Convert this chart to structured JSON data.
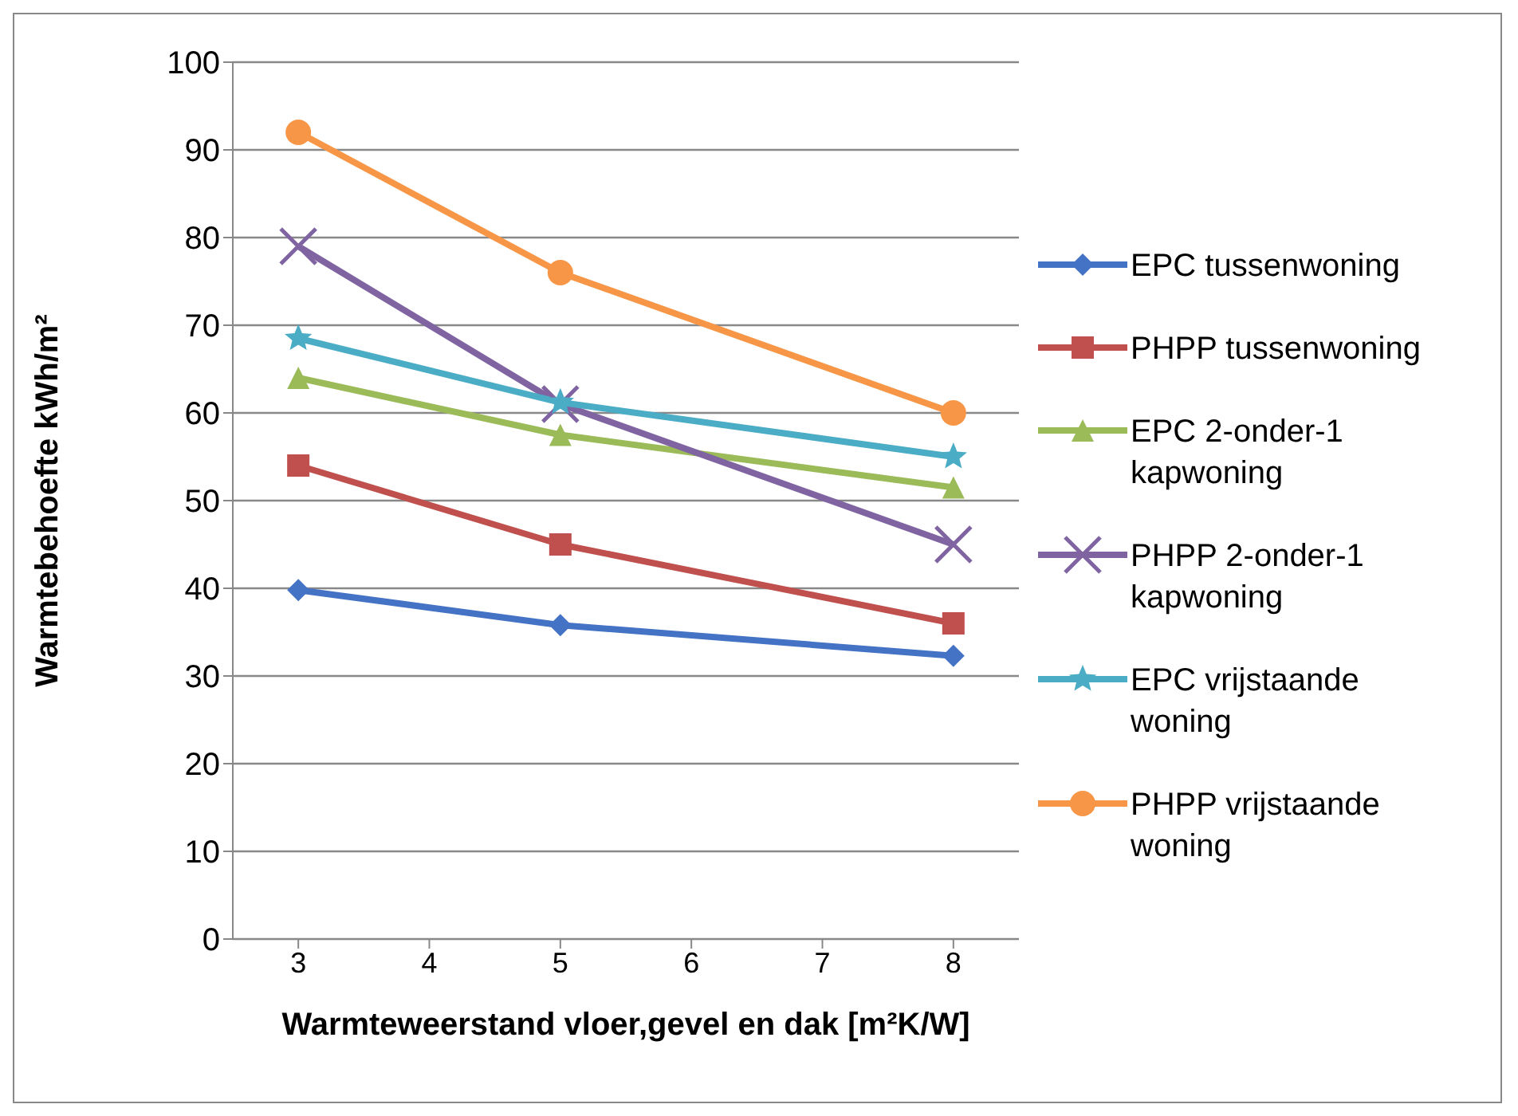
{
  "chart_data": {
    "type": "line",
    "xlabel": "Warmteweerstand vloer,gevel en dak [m²K/W]",
    "ylabel": "Warmtebehoefte kWh/m²",
    "x": [
      3,
      5,
      8
    ],
    "xlim": [
      2.5,
      8.5
    ],
    "xticks": [
      3,
      4,
      5,
      6,
      7,
      8
    ],
    "ylim": [
      0,
      100
    ],
    "yticks": [
      0,
      10,
      20,
      30,
      40,
      50,
      60,
      70,
      80,
      90,
      100
    ],
    "grid": "y",
    "legend": "right",
    "line_style": "solid",
    "series": [
      {
        "name": "EPC tussenwoning",
        "color": "#4472c4",
        "marker": "diamond",
        "values": [
          39.8,
          35.8,
          32.3
        ]
      },
      {
        "name": "PHPP tussenwoning",
        "color": "#c0504d",
        "marker": "square",
        "values": [
          54,
          45,
          36
        ]
      },
      {
        "name": "EPC 2-onder-1 kapwoning",
        "color": "#9bbb59",
        "marker": "triangle",
        "values": [
          64,
          57.5,
          51.5
        ]
      },
      {
        "name": "PHPP 2-onder-1 kapwoning",
        "color": "#8064a2",
        "marker": "cross",
        "values": [
          79,
          61,
          45
        ]
      },
      {
        "name": "EPC vrijstaande woning",
        "color": "#4bacc6",
        "marker": "star",
        "values": [
          68.5,
          61.2,
          55
        ]
      },
      {
        "name": "PHPP vrijstaande woning",
        "color": "#f79646",
        "marker": "circle",
        "values": [
          92,
          76,
          60
        ]
      }
    ]
  }
}
